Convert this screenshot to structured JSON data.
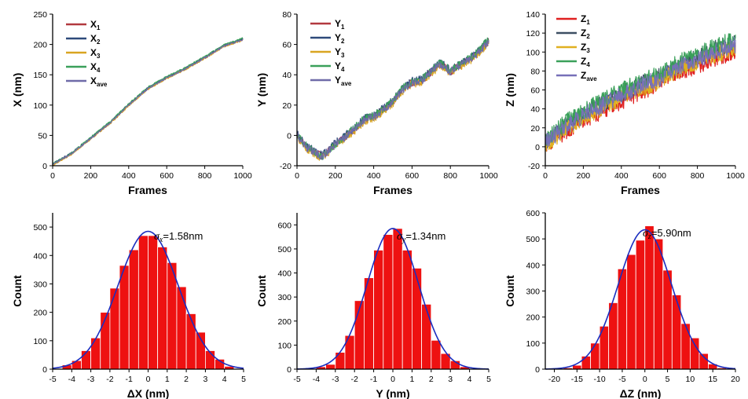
{
  "chart_data": [
    {
      "type": "line",
      "xlabel": "Frames",
      "ylabel": "X (nm)",
      "xlim": [
        0,
        1000
      ],
      "ylim": [
        0,
        250
      ],
      "xticks": [
        0,
        200,
        400,
        600,
        800,
        1000
      ],
      "yticks": [
        0,
        50,
        100,
        150,
        200,
        250
      ],
      "x": [
        0,
        100,
        200,
        300,
        400,
        500,
        600,
        700,
        800,
        900,
        1000
      ],
      "series": [
        {
          "name": "X",
          "sub": "1",
          "color": "#b2393f",
          "values": [
            2,
            20,
            45,
            70,
            100,
            127,
            145,
            160,
            178,
            197,
            208
          ]
        },
        {
          "name": "X",
          "sub": "2",
          "color": "#2e4a7a",
          "values": [
            3,
            21,
            46,
            71,
            101,
            128,
            146,
            161,
            179,
            198,
            209
          ]
        },
        {
          "name": "X",
          "sub": "3",
          "color": "#d9a521",
          "values": [
            1,
            19,
            44,
            69,
            99,
            126,
            144,
            159,
            177,
            196,
            207
          ]
        },
        {
          "name": "X",
          "sub": "4",
          "color": "#3aa05a",
          "values": [
            3,
            21,
            47,
            72,
            102,
            129,
            147,
            162,
            180,
            199,
            210
          ]
        },
        {
          "name": "X",
          "sub": "ave",
          "color": "#6f6ba8",
          "values": [
            2,
            20,
            45,
            70,
            100,
            127,
            145,
            160,
            178,
            197,
            208
          ]
        }
      ]
    },
    {
      "type": "line",
      "xlabel": "Frames",
      "ylabel": "Y (nm)",
      "xlim": [
        0,
        1000
      ],
      "ylim": [
        -20,
        80
      ],
      "xticks": [
        0,
        200,
        400,
        600,
        800,
        1000
      ],
      "yticks": [
        -20,
        0,
        20,
        40,
        60,
        80
      ],
      "x": [
        0,
        50,
        130,
        200,
        300,
        350,
        400,
        450,
        500,
        550,
        600,
        650,
        700,
        750,
        800,
        850,
        900,
        950,
        1000
      ],
      "series": [
        {
          "name": "Y",
          "sub": "1",
          "color": "#b2393f",
          "values": [
            0,
            -8,
            -14,
            -6,
            4,
            10,
            12,
            17,
            22,
            30,
            35,
            36,
            42,
            47,
            42,
            46,
            50,
            55,
            62
          ]
        },
        {
          "name": "Y",
          "sub": "2",
          "color": "#2e4a7a",
          "values": [
            1,
            -7,
            -13,
            -5,
            5,
            11,
            13,
            18,
            23,
            31,
            36,
            37,
            43,
            48,
            43,
            47,
            51,
            56,
            63
          ]
        },
        {
          "name": "Y",
          "sub": "3",
          "color": "#d9a521",
          "values": [
            -1,
            -9,
            -15,
            -7,
            3,
            9,
            11,
            16,
            21,
            29,
            34,
            35,
            41,
            46,
            41,
            45,
            49,
            54,
            61
          ]
        },
        {
          "name": "Y",
          "sub": "4",
          "color": "#3aa05a",
          "values": [
            1,
            -7,
            -14,
            -6,
            5,
            11,
            13,
            17,
            23,
            31,
            35,
            37,
            43,
            48,
            43,
            47,
            51,
            56,
            64
          ]
        },
        {
          "name": "Y",
          "sub": "ave",
          "color": "#6f6ba8",
          "values": [
            0,
            -8,
            -14,
            -6,
            4,
            10,
            12,
            17,
            22,
            30,
            35,
            36,
            42,
            47,
            42,
            46,
            50,
            55,
            62
          ]
        }
      ]
    },
    {
      "type": "line",
      "xlabel": "Frames",
      "ylabel": "Z (nm)",
      "xlim": [
        0,
        1000
      ],
      "ylim": [
        -20,
        140
      ],
      "xticks": [
        0,
        200,
        400,
        600,
        800,
        1000
      ],
      "yticks": [
        -20,
        0,
        20,
        40,
        60,
        80,
        100,
        120,
        140
      ],
      "x": [
        0,
        100,
        200,
        300,
        400,
        500,
        600,
        700,
        800,
        900,
        1000
      ],
      "series": [
        {
          "name": "Z",
          "sub": "1",
          "color": "#e02020",
          "values": [
            0,
            15,
            28,
            38,
            48,
            58,
            66,
            78,
            86,
            94,
            100
          ]
        },
        {
          "name": "Z",
          "sub": "2",
          "color": "#3d4f63",
          "values": [
            6,
            22,
            35,
            46,
            56,
            66,
            74,
            86,
            94,
            104,
            110
          ]
        },
        {
          "name": "Z",
          "sub": "3",
          "color": "#e0b020",
          "values": [
            2,
            17,
            30,
            41,
            51,
            61,
            69,
            81,
            89,
            98,
            104
          ]
        },
        {
          "name": "Z",
          "sub": "4",
          "color": "#3aa05a",
          "values": [
            8,
            25,
            38,
            49,
            59,
            69,
            77,
            89,
            97,
            107,
            113
          ]
        },
        {
          "name": "Z",
          "sub": "ave",
          "color": "#7770b8",
          "values": [
            4,
            20,
            33,
            44,
            54,
            64,
            72,
            84,
            92,
            101,
            108
          ]
        }
      ]
    },
    {
      "type": "bar",
      "xlabel": "ΔX (nm)",
      "ylabel": "Count",
      "xlim": [
        -5,
        5
      ],
      "ylim": [
        0,
        550
      ],
      "xticks": [
        -5,
        -4,
        -3,
        -2,
        -1,
        0,
        1,
        2,
        3,
        4,
        5
      ],
      "yticks": [
        0,
        100,
        200,
        300,
        400,
        500
      ],
      "bin_width": 0.5,
      "bin_centers": [
        -4.25,
        -3.75,
        -3.25,
        -2.75,
        -2.25,
        -1.75,
        -1.25,
        -0.75,
        -0.25,
        0.25,
        0.75,
        1.25,
        1.75,
        2.25,
        2.75,
        3.25,
        3.75,
        4.25
      ],
      "values": [
        15,
        30,
        65,
        110,
        200,
        285,
        365,
        420,
        470,
        470,
        430,
        375,
        290,
        195,
        130,
        65,
        35,
        10
      ],
      "fit": {
        "mean": 0,
        "sigma": 1.58,
        "amplitude": 485
      },
      "annotation": {
        "symbol": "σ",
        "sub": "x",
        "value": "=1.58nm"
      }
    },
    {
      "type": "bar",
      "xlabel": "Y (nm)",
      "ylabel": "Count",
      "xlim": [
        -5,
        5
      ],
      "ylim": [
        0,
        650
      ],
      "xticks": [
        -5,
        -4,
        -3,
        -2,
        -1,
        0,
        1,
        2,
        3,
        4,
        5
      ],
      "yticks": [
        0,
        100,
        200,
        300,
        400,
        500,
        600
      ],
      "bin_width": 0.5,
      "bin_centers": [
        -3.75,
        -3.25,
        -2.75,
        -2.25,
        -1.75,
        -1.25,
        -0.75,
        -0.25,
        0.25,
        0.75,
        1.25,
        1.75,
        2.25,
        2.75,
        3.25,
        3.75
      ],
      "values": [
        10,
        20,
        70,
        140,
        285,
        380,
        495,
        560,
        585,
        495,
        420,
        270,
        120,
        65,
        35,
        10
      ],
      "fit": {
        "mean": 0,
        "sigma": 1.34,
        "amplitude": 585
      },
      "annotation": {
        "symbol": "σ",
        "sub": "y",
        "value": "=1.34nm"
      }
    },
    {
      "type": "bar",
      "xlabel": "ΔZ (nm)",
      "ylabel": "Count",
      "xlim": [
        -22,
        20
      ],
      "ylim": [
        0,
        600
      ],
      "xticks": [
        -20,
        -15,
        -10,
        -5,
        0,
        5,
        10,
        15,
        20
      ],
      "yticks": [
        0,
        100,
        200,
        300,
        400,
        500,
        600
      ],
      "bin_width": 2,
      "bin_centers": [
        -17,
        -15,
        -13,
        -11,
        -9,
        -7,
        -5,
        -3,
        -1,
        1,
        3,
        5,
        7,
        9,
        11,
        13,
        15,
        17
      ],
      "values": [
        5,
        15,
        50,
        100,
        165,
        255,
        385,
        440,
        495,
        550,
        500,
        380,
        285,
        175,
        120,
        60,
        20,
        5
      ],
      "fit": {
        "mean": 0,
        "sigma": 5.9,
        "amplitude": 535
      },
      "annotation": {
        "symbol": "σ",
        "sub": "z",
        "value": "=5.90nm"
      }
    }
  ]
}
